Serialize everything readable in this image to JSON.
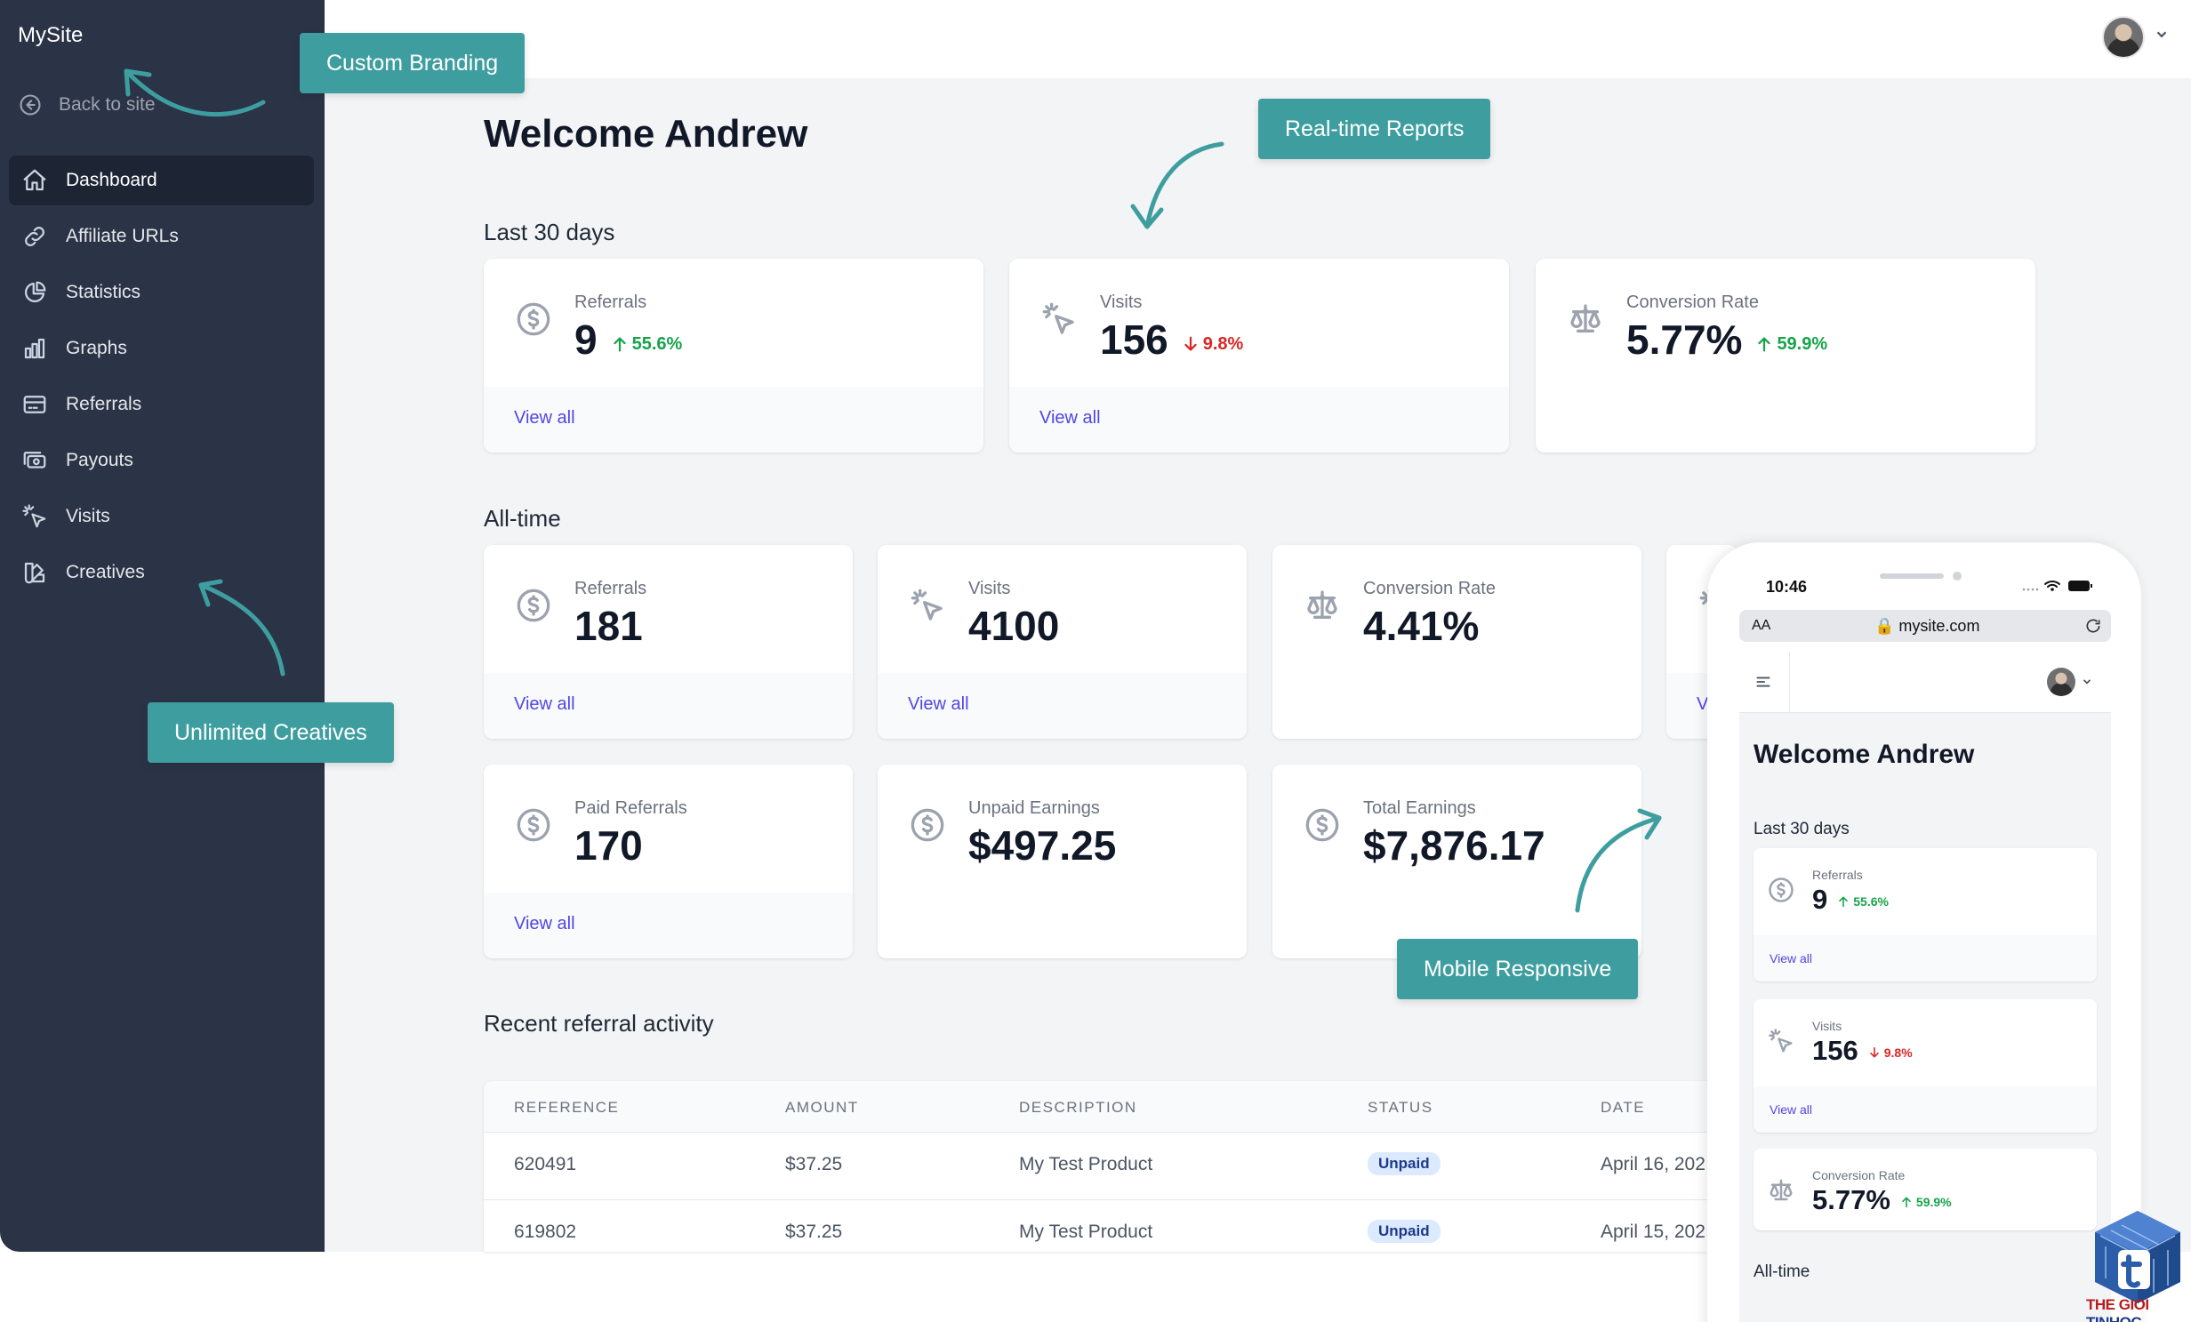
{
  "app": {
    "brand": "MySite",
    "back_label": "Back to site"
  },
  "sidebar": {
    "items": [
      {
        "label": "Dashboard",
        "icon": "home-icon",
        "active": true
      },
      {
        "label": "Affiliate URLs",
        "icon": "link-icon"
      },
      {
        "label": "Statistics",
        "icon": "pie-chart-icon"
      },
      {
        "label": "Graphs",
        "icon": "bar-chart-icon"
      },
      {
        "label": "Referrals",
        "icon": "credit-card-icon"
      },
      {
        "label": "Payouts",
        "icon": "cash-icon"
      },
      {
        "label": "Visits",
        "icon": "cursor-click-icon"
      },
      {
        "label": "Creatives",
        "icon": "color-swatch-icon"
      }
    ]
  },
  "main": {
    "welcome": "Welcome Andrew",
    "last30": {
      "heading": "Last 30 days",
      "cards": [
        {
          "label": "Referrals",
          "value": "9",
          "delta": "55.6%",
          "direction": "up",
          "link": "View all",
          "icon": "currency-dollar-icon"
        },
        {
          "label": "Visits",
          "value": "156",
          "delta": "9.8%",
          "direction": "down",
          "link": "View all",
          "icon": "cursor-click-icon"
        },
        {
          "label": "Conversion Rate",
          "value": "5.77%",
          "delta": "59.9%",
          "direction": "up",
          "icon": "scale-icon"
        }
      ]
    },
    "alltime": {
      "heading": "All-time",
      "cards": [
        {
          "label": "Referrals",
          "value": "181",
          "link": "View all",
          "icon": "currency-dollar-icon"
        },
        {
          "label": "Visits",
          "value": "4100",
          "link": "View all",
          "icon": "cursor-click-icon"
        },
        {
          "label": "Conversion Rate",
          "value": "4.41%",
          "icon": "scale-icon"
        },
        {
          "label": "",
          "value": "",
          "link": "V",
          "icon": "cursor-click-icon"
        },
        {
          "label": "Paid Referrals",
          "value": "170",
          "link": "View all",
          "icon": "currency-dollar-icon"
        },
        {
          "label": "Unpaid Earnings",
          "value": "$497.25",
          "icon": "currency-dollar-icon"
        },
        {
          "label": "Total Earnings",
          "value": "$7,876.17",
          "icon": "currency-dollar-icon"
        }
      ]
    },
    "activity": {
      "heading": "Recent referral activity",
      "columns": [
        "REFERENCE",
        "AMOUNT",
        "DESCRIPTION",
        "STATUS",
        "DATE"
      ],
      "rows": [
        [
          "620491",
          "$37.25",
          "My Test Product",
          "Unpaid",
          "April 16, 202"
        ],
        [
          "619802",
          "$37.25",
          "My Test Product",
          "Unpaid",
          "April 15, 202"
        ]
      ]
    }
  },
  "callouts": {
    "branding": "Custom Branding",
    "reports": "Real-time Reports",
    "creatives": "Unlimited Creatives",
    "mobile": "Mobile Responsive"
  },
  "phone": {
    "time": "10:46",
    "aa": "AA",
    "url": "mysite.com",
    "welcome": "Welcome Andrew",
    "last30": "Last 30 days",
    "alltime": "All-time",
    "cards": [
      {
        "label": "Referrals",
        "value": "9",
        "delta": "55.6%",
        "direction": "up",
        "link": "View all"
      },
      {
        "label": "Visits",
        "value": "156",
        "delta": "9.8%",
        "direction": "down",
        "link": "View all"
      },
      {
        "label": "Conversion Rate",
        "value": "5.77%",
        "delta": "59.9%",
        "direction": "up"
      }
    ]
  },
  "watermark": {
    "text": "THE GIOI TINHOC"
  },
  "colors": {
    "sidebar": "#2b3346",
    "accent": "#3e9e9f",
    "link": "#4f46e5",
    "up": "#16a34a",
    "down": "#dc2626"
  }
}
